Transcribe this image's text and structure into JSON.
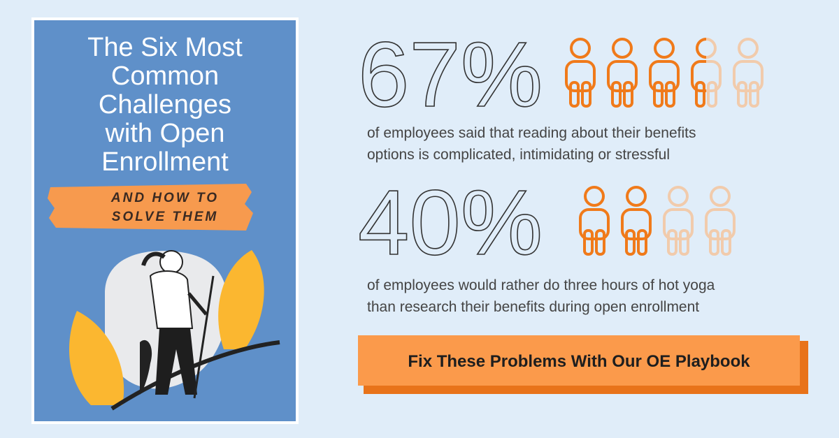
{
  "book": {
    "title_lines": [
      "The Six Most",
      "Common",
      "Challenges",
      "with Open",
      "Enrollment"
    ],
    "subtitle_lines": [
      "AND HOW TO",
      "SOLVE THEM"
    ]
  },
  "stats": [
    {
      "figure": "67%",
      "description_lines": [
        "of employees said that reading about their benefits",
        "options is complicated, intimidating or stressful"
      ]
    },
    {
      "figure": "40%",
      "description_lines": [
        "of employees would rather do three hours of hot yoga",
        "than research their benefits during open enrollment"
      ]
    }
  ],
  "button": {
    "label": "Fix These Problems With Our OE Playbook"
  }
}
